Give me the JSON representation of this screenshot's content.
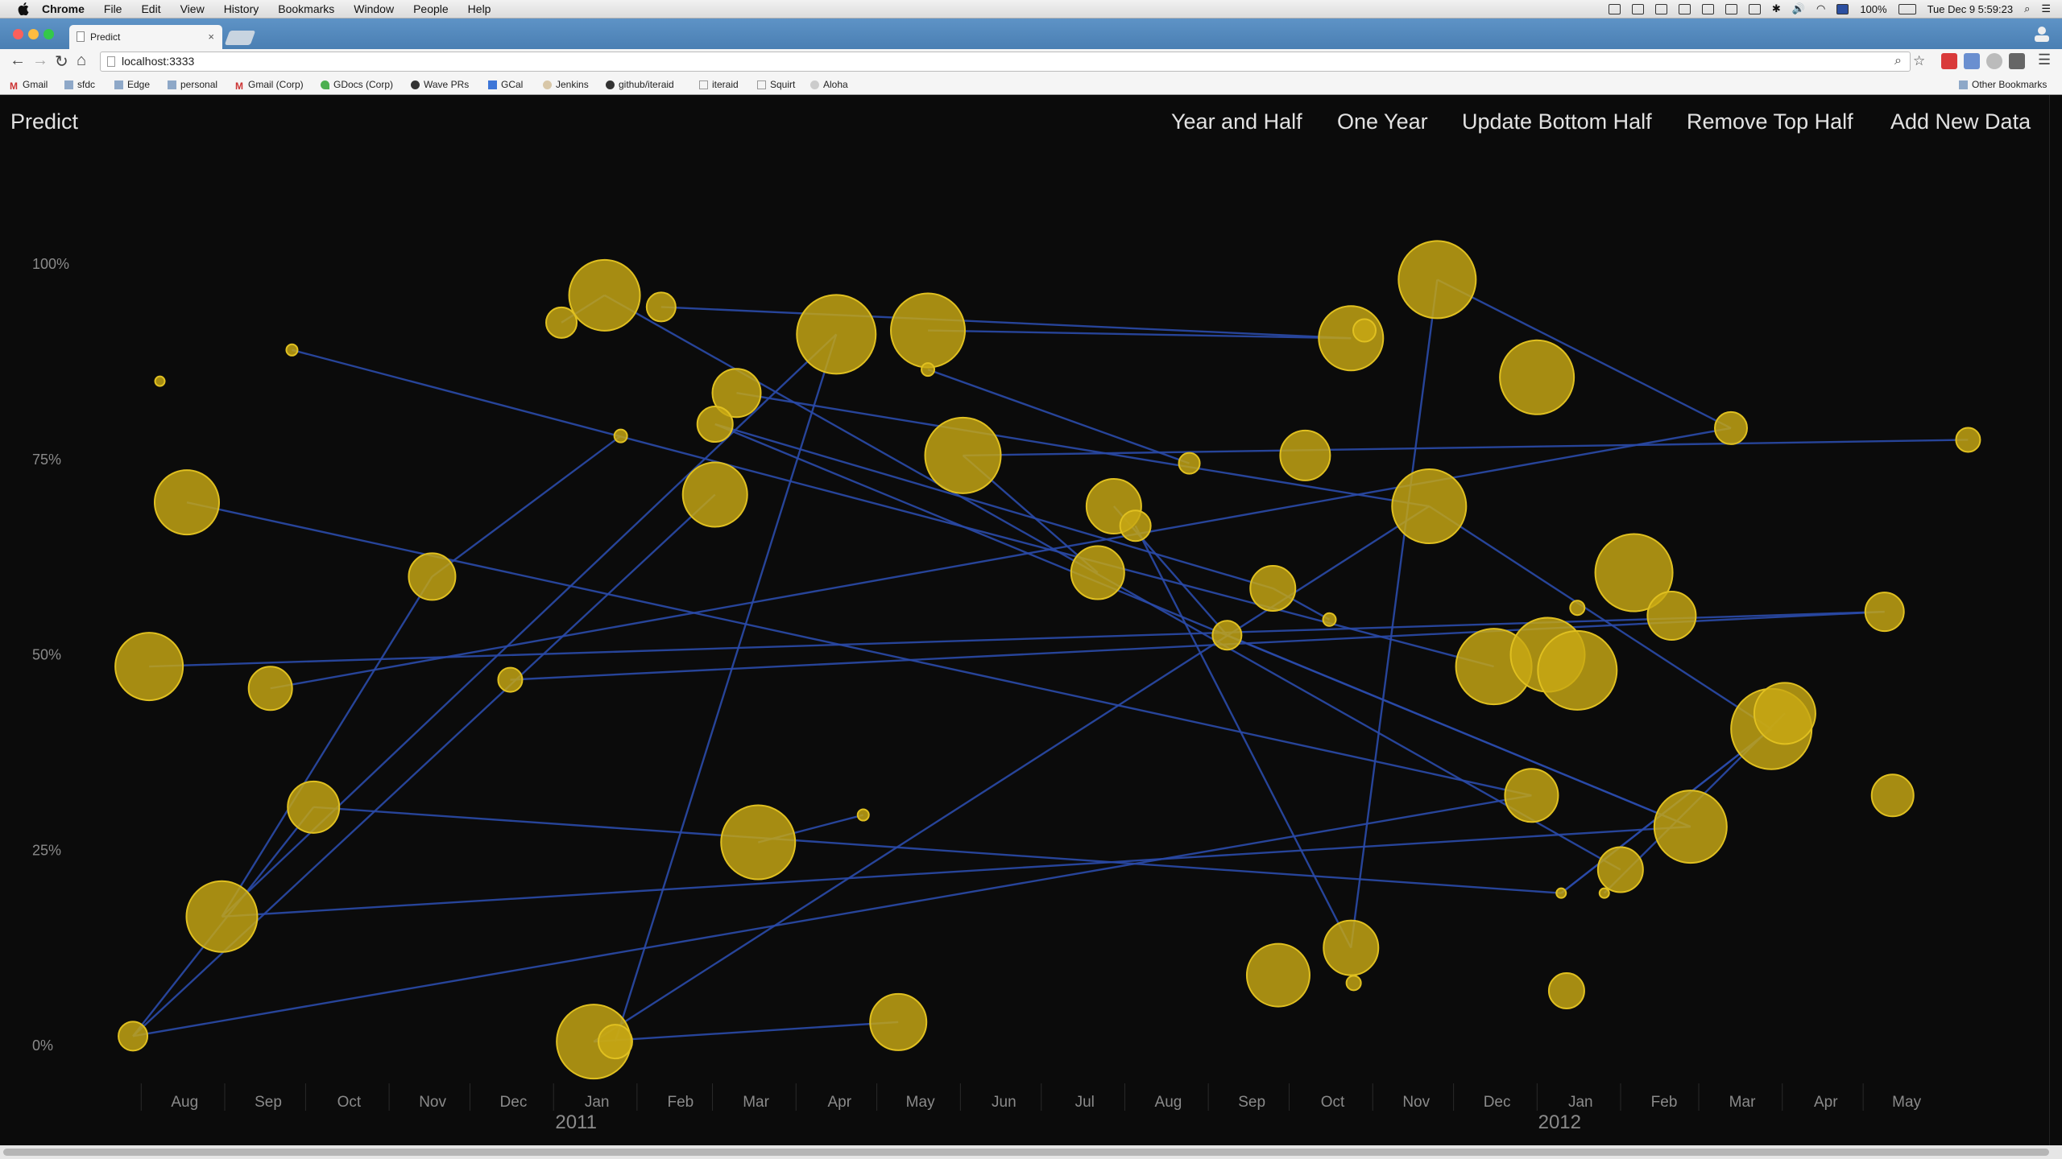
{
  "menubar": {
    "items": [
      "Chrome",
      "File",
      "Edit",
      "View",
      "History",
      "Bookmarks",
      "Window",
      "People",
      "Help"
    ],
    "battery": "100%",
    "clock": "Tue Dec 9  5:59:23"
  },
  "browser": {
    "tab_title": "Predict",
    "tab_close": "×",
    "url": "localhost:3333",
    "nav": {
      "back": "←",
      "forward": "→",
      "reload": "↻",
      "home": "⌂"
    },
    "bookmarks": [
      "Gmail",
      "sfdc",
      "Edge",
      "personal",
      "Gmail (Corp)",
      "GDocs (Corp)",
      "Wave  PRs",
      "GCal",
      "Jenkins",
      "github/iteraid",
      "iteraid",
      "Squirt",
      "Aloha"
    ],
    "other_bookmarks": "Other Bookmarks"
  },
  "app": {
    "brand": "Predict",
    "nav": [
      "Year and Half",
      "One Year",
      "Update Bottom Half",
      "Remove Top Half",
      "Add New Data"
    ]
  },
  "colors": {
    "bubble_fill": "#c8a814",
    "bubble_stroke": "#e0c020",
    "link": "#2a4aa8",
    "axis_text": "#8a8a8a",
    "background": "#0b0b0b"
  },
  "chart_data": {
    "type": "scatter",
    "x_axis_type": "time",
    "xlim": [
      "2010-07-08",
      "2012-05-18"
    ],
    "ylim": [
      0,
      1.0
    ],
    "y_tick_labels": [
      "0%",
      "25%",
      "50%",
      "75%",
      "100%"
    ],
    "y_ticks": [
      0,
      0.25,
      0.5,
      0.75,
      1.0
    ],
    "month_ticks": [
      {
        "date": "2010-08-01",
        "label": "Aug"
      },
      {
        "date": "2010-09-01",
        "label": "Sep"
      },
      {
        "date": "2010-10-01",
        "label": "Oct"
      },
      {
        "date": "2010-11-01",
        "label": "Nov"
      },
      {
        "date": "2010-12-01",
        "label": "Dec"
      },
      {
        "date": "2011-01-01",
        "label": "Jan"
      },
      {
        "date": "2011-02-01",
        "label": "Feb"
      },
      {
        "date": "2011-03-01",
        "label": "Mar"
      },
      {
        "date": "2011-04-01",
        "label": "Apr"
      },
      {
        "date": "2011-05-01",
        "label": "May"
      },
      {
        "date": "2011-06-01",
        "label": "Jun"
      },
      {
        "date": "2011-07-01",
        "label": "Jul"
      },
      {
        "date": "2011-08-01",
        "label": "Aug"
      },
      {
        "date": "2011-09-01",
        "label": "Sep"
      },
      {
        "date": "2011-10-01",
        "label": "Oct"
      },
      {
        "date": "2011-11-01",
        "label": "Nov"
      },
      {
        "date": "2011-12-01",
        "label": "Dec"
      },
      {
        "date": "2012-01-01",
        "label": "Jan"
      },
      {
        "date": "2012-02-01",
        "label": "Feb"
      },
      {
        "date": "2012-03-01",
        "label": "Mar"
      },
      {
        "date": "2012-04-01",
        "label": "Apr"
      },
      {
        "date": "2012-05-01",
        "label": "May"
      }
    ],
    "year_labels": [
      {
        "date": "2011-01-01",
        "label": "2011"
      },
      {
        "date": "2012-01-01",
        "label": "2012"
      }
    ],
    "points": [
      {
        "date": "2010-07-24",
        "y": 0.85,
        "size": 6
      },
      {
        "date": "2010-09-11",
        "y": 0.89,
        "size": 7
      },
      {
        "date": "2010-08-03",
        "y": 0.695,
        "size": 40
      },
      {
        "date": "2010-11-02",
        "y": 0.6,
        "size": 29
      },
      {
        "date": "2010-07-20",
        "y": 0.485,
        "size": 42
      },
      {
        "date": "2010-09-03",
        "y": 0.457,
        "size": 27
      },
      {
        "date": "2010-12-01",
        "y": 0.468,
        "size": 15
      },
      {
        "date": "2010-09-19",
        "y": 0.305,
        "size": 32
      },
      {
        "date": "2010-08-16",
        "y": 0.165,
        "size": 44
      },
      {
        "date": "2010-07-14",
        "y": 0.012,
        "size": 18
      },
      {
        "date": "2010-12-20",
        "y": 0.925,
        "size": 19
      },
      {
        "date": "2011-01-05",
        "y": 0.96,
        "size": 44
      },
      {
        "date": "2011-01-26",
        "y": 0.945,
        "size": 18
      },
      {
        "date": "2011-01-11",
        "y": 0.78,
        "size": 8
      },
      {
        "date": "2011-02-23",
        "y": 0.835,
        "size": 30
      },
      {
        "date": "2011-02-15",
        "y": 0.795,
        "size": 22
      },
      {
        "date": "2011-02-15",
        "y": 0.705,
        "size": 40
      },
      {
        "date": "2011-04-01",
        "y": 0.91,
        "size": 49
      },
      {
        "date": "2011-05-05",
        "y": 0.915,
        "size": 46
      },
      {
        "date": "2011-05-05",
        "y": 0.865,
        "size": 8
      },
      {
        "date": "2011-05-18",
        "y": 0.755,
        "size": 47
      },
      {
        "date": "2011-03-03",
        "y": 0.26,
        "size": 46
      },
      {
        "date": "2011-04-11",
        "y": 0.295,
        "size": 7
      },
      {
        "date": "2011-01-01",
        "y": 0.005,
        "size": 46
      },
      {
        "date": "2011-01-09",
        "y": 0.005,
        "size": 21
      },
      {
        "date": "2011-04-24",
        "y": 0.03,
        "size": 35
      },
      {
        "date": "2011-07-13",
        "y": 0.69,
        "size": 34
      },
      {
        "date": "2011-07-21",
        "y": 0.665,
        "size": 19
      },
      {
        "date": "2011-07-07",
        "y": 0.605,
        "size": 33
      },
      {
        "date": "2011-08-10",
        "y": 0.745,
        "size": 13
      },
      {
        "date": "2011-08-24",
        "y": 0.525,
        "size": 18
      },
      {
        "date": "2011-09-22",
        "y": 0.755,
        "size": 31
      },
      {
        "date": "2011-09-10",
        "y": 0.585,
        "size": 28
      },
      {
        "date": "2011-10-01",
        "y": 0.545,
        "size": 8
      },
      {
        "date": "2011-10-09",
        "y": 0.905,
        "size": 40
      },
      {
        "date": "2011-10-14",
        "y": 0.915,
        "size": 14
      },
      {
        "date": "2011-11-10",
        "y": 0.98,
        "size": 48
      },
      {
        "date": "2011-11-07",
        "y": 0.69,
        "size": 46
      },
      {
        "date": "2011-12-01",
        "y": 0.485,
        "size": 47
      },
      {
        "date": "2011-12-17",
        "y": 0.855,
        "size": 46
      },
      {
        "date": "2011-12-21",
        "y": 0.5,
        "size": 46
      },
      {
        "date": "2012-01-01",
        "y": 0.48,
        "size": 49
      },
      {
        "date": "2011-12-15",
        "y": 0.32,
        "size": 33
      },
      {
        "date": "2012-01-22",
        "y": 0.605,
        "size": 48
      },
      {
        "date": "2012-01-01",
        "y": 0.56,
        "size": 9
      },
      {
        "date": "2012-02-05",
        "y": 0.55,
        "size": 30
      },
      {
        "date": "2012-02-27",
        "y": 0.79,
        "size": 20
      },
      {
        "date": "2012-03-13",
        "y": 0.405,
        "size": 50
      },
      {
        "date": "2012-03-18",
        "y": 0.425,
        "size": 38
      },
      {
        "date": "2012-02-12",
        "y": 0.28,
        "size": 45
      },
      {
        "date": "2012-01-17",
        "y": 0.225,
        "size": 28
      },
      {
        "date": "2012-01-11",
        "y": 0.195,
        "size": 6
      },
      {
        "date": "2011-12-26",
        "y": 0.195,
        "size": 6
      },
      {
        "date": "2011-12-28",
        "y": 0.07,
        "size": 22
      },
      {
        "date": "2011-09-12",
        "y": 0.09,
        "size": 39
      },
      {
        "date": "2011-10-09",
        "y": 0.125,
        "size": 34
      },
      {
        "date": "2011-10-10",
        "y": 0.08,
        "size": 9
      },
      {
        "date": "2012-04-24",
        "y": 0.555,
        "size": 24
      },
      {
        "date": "2012-04-27",
        "y": 0.32,
        "size": 26
      },
      {
        "date": "2012-05-25",
        "y": 0.775,
        "size": 15
      }
    ],
    "links": [
      [
        1,
        38
      ],
      [
        2,
        42
      ],
      [
        3,
        8
      ],
      [
        3,
        13
      ],
      [
        5,
        46
      ],
      [
        4,
        57
      ],
      [
        6,
        57
      ],
      [
        7,
        52
      ],
      [
        8,
        17
      ],
      [
        8,
        49
      ],
      [
        9,
        7
      ],
      [
        9,
        16
      ],
      [
        9,
        42
      ],
      [
        11,
        10
      ],
      [
        11,
        50
      ],
      [
        12,
        34
      ],
      [
        14,
        37
      ],
      [
        15,
        32
      ],
      [
        15,
        49
      ],
      [
        17,
        24
      ],
      [
        18,
        34
      ],
      [
        19,
        29
      ],
      [
        20,
        59
      ],
      [
        21,
        22
      ],
      [
        23,
        25
      ],
      [
        23,
        37
      ],
      [
        26,
        30
      ],
      [
        27,
        55
      ],
      [
        28,
        20
      ],
      [
        30,
        49
      ],
      [
        36,
        46
      ],
      [
        37,
        47
      ],
      [
        32,
        33
      ],
      [
        55,
        36
      ],
      [
        52,
        47
      ],
      [
        51,
        48
      ],
      [
        52,
        47
      ]
    ]
  }
}
